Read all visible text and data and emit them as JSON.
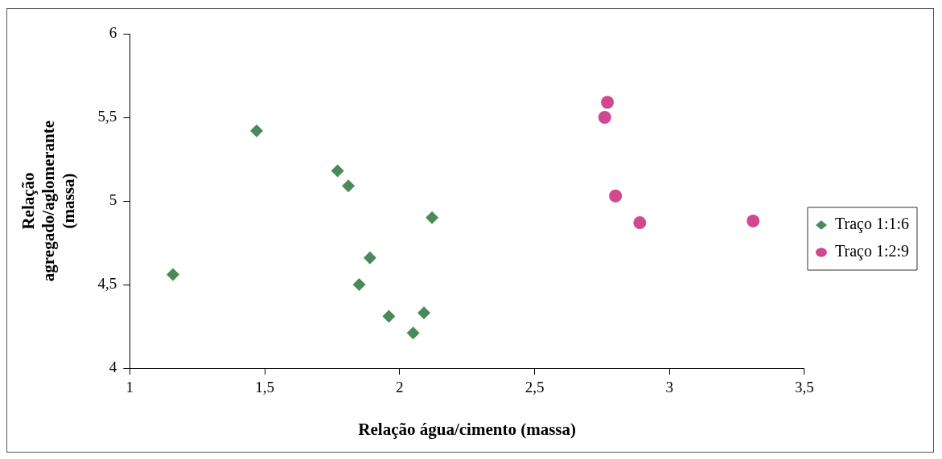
{
  "chart_data": {
    "type": "scatter",
    "xlabel": "Relação água/cimento (massa)",
    "ylabel": "Relação agregado/aglomerante (massa)",
    "xlim": [
      1,
      3.5
    ],
    "xticks": [
      1,
      {
        "value": 1.5,
        "label": "1,5"
      },
      2,
      {
        "value": 2.5,
        "label": "2,5"
      },
      3,
      {
        "value": 3.5,
        "label": "3,5"
      }
    ],
    "ylim": [
      4,
      6
    ],
    "yticks": [
      4,
      {
        "value": 4.5,
        "label": "4,5"
      },
      5,
      {
        "value": 5.5,
        "label": "5,5"
      },
      6
    ],
    "grid": false,
    "legend": "right",
    "series": [
      {
        "name": "Traço 1:1:6",
        "color": "#4a8a5a",
        "marker": "diamond",
        "x": [
          1.47,
          1.77,
          1.81,
          1.16,
          2.12,
          1.89,
          1.85,
          1.96,
          2.09,
          2.05
        ],
        "values": [
          5.42,
          5.18,
          5.09,
          4.56,
          4.9,
          4.66,
          4.5,
          4.31,
          4.33,
          4.21
        ]
      },
      {
        "name": "Traço 1:2:9",
        "color": "#d0488f",
        "marker": "circle",
        "x": [
          2.76,
          2.77,
          2.8,
          2.89,
          3.31
        ],
        "values": [
          5.5,
          5.59,
          5.03,
          4.87,
          4.88
        ]
      }
    ]
  }
}
